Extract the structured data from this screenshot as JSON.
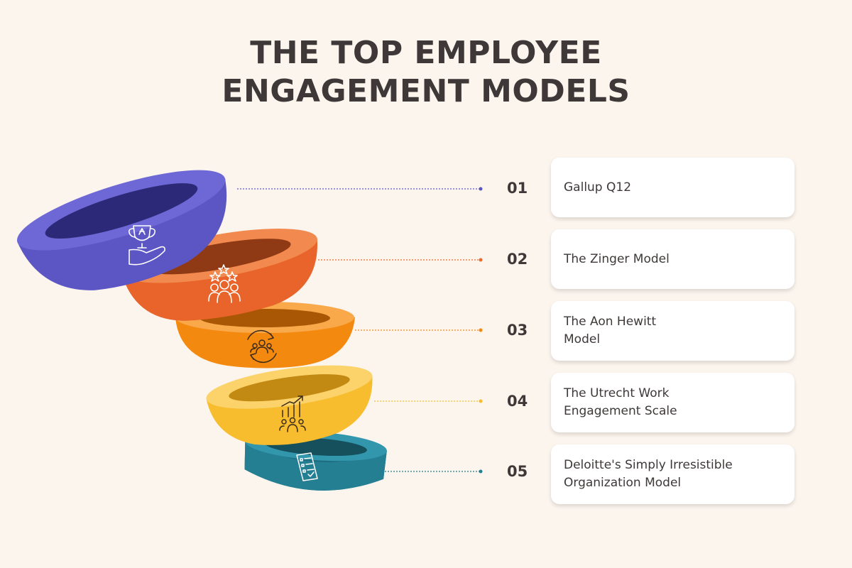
{
  "title": {
    "line1": "THE TOP EMPLOYEE",
    "line2": "ENGAGEMENT MODELS"
  },
  "items": [
    {
      "number": "01",
      "label": "Gallup Q12",
      "color": "#5b56c3",
      "icon": "trophy-hand-icon"
    },
    {
      "number": "02",
      "label": "The Zinger Model",
      "color": "#ea6a2d",
      "icon": "team-stars-icon"
    },
    {
      "number": "03",
      "label": "The Aon Hewitt\nModel",
      "color": "#f4890f",
      "icon": "group-cycle-icon"
    },
    {
      "number": "04",
      "label": "The Utrecht Work\nEngagement Scale",
      "color": "#f8bd2f",
      "icon": "growth-chart-team-icon"
    },
    {
      "number": "05",
      "label": "Deloitte's Simply Irresistible\nOrganization Model",
      "color": "#257f93",
      "icon": "checklist-icon"
    }
  ]
}
